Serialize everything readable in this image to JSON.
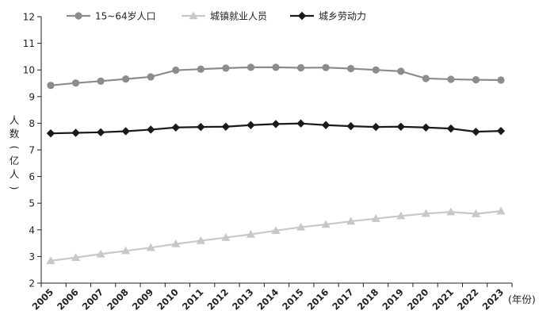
{
  "chart_data": {
    "type": "line",
    "x": [
      "2005",
      "2006",
      "2007",
      "2008",
      "2009",
      "2010",
      "2011",
      "2012",
      "2013",
      "2014",
      "2015",
      "2016",
      "2017",
      "2018",
      "2019",
      "2020",
      "2021",
      "2022",
      "2023"
    ],
    "ylim": [
      2,
      12
    ],
    "yticks": [
      2,
      3,
      4,
      5,
      6,
      7,
      8,
      9,
      10,
      11,
      12
    ],
    "ylabel_chars": [
      "人",
      "数",
      "(",
      "亿",
      "人",
      ")"
    ],
    "xunit": "(年份)",
    "grid": false,
    "legend_position": "top-left",
    "series": [
      {
        "name": "15~64岁人口",
        "color": "#8c8c8c",
        "marker": "circle",
        "values": [
          9.42,
          9.51,
          9.58,
          9.66,
          9.74,
          9.99,
          10.03,
          10.07,
          10.1,
          10.1,
          10.08,
          10.09,
          10.05,
          10.0,
          9.95,
          9.68,
          9.65,
          9.63,
          9.62
        ]
      },
      {
        "name": "城镇就业人员",
        "color": "#c8c8c8",
        "marker": "triangle",
        "values": [
          2.84,
          2.96,
          3.09,
          3.21,
          3.33,
          3.47,
          3.59,
          3.71,
          3.83,
          3.97,
          4.1,
          4.2,
          4.32,
          4.42,
          4.52,
          4.61,
          4.67,
          4.6,
          4.7
        ]
      },
      {
        "name": "城乡劳动力",
        "color": "#1a1a1a",
        "marker": "diamond",
        "values": [
          7.62,
          7.64,
          7.66,
          7.7,
          7.76,
          7.84,
          7.86,
          7.87,
          7.93,
          7.97,
          7.99,
          7.93,
          7.89,
          7.86,
          7.87,
          7.84,
          7.8,
          7.68,
          7.71
        ]
      }
    ]
  }
}
